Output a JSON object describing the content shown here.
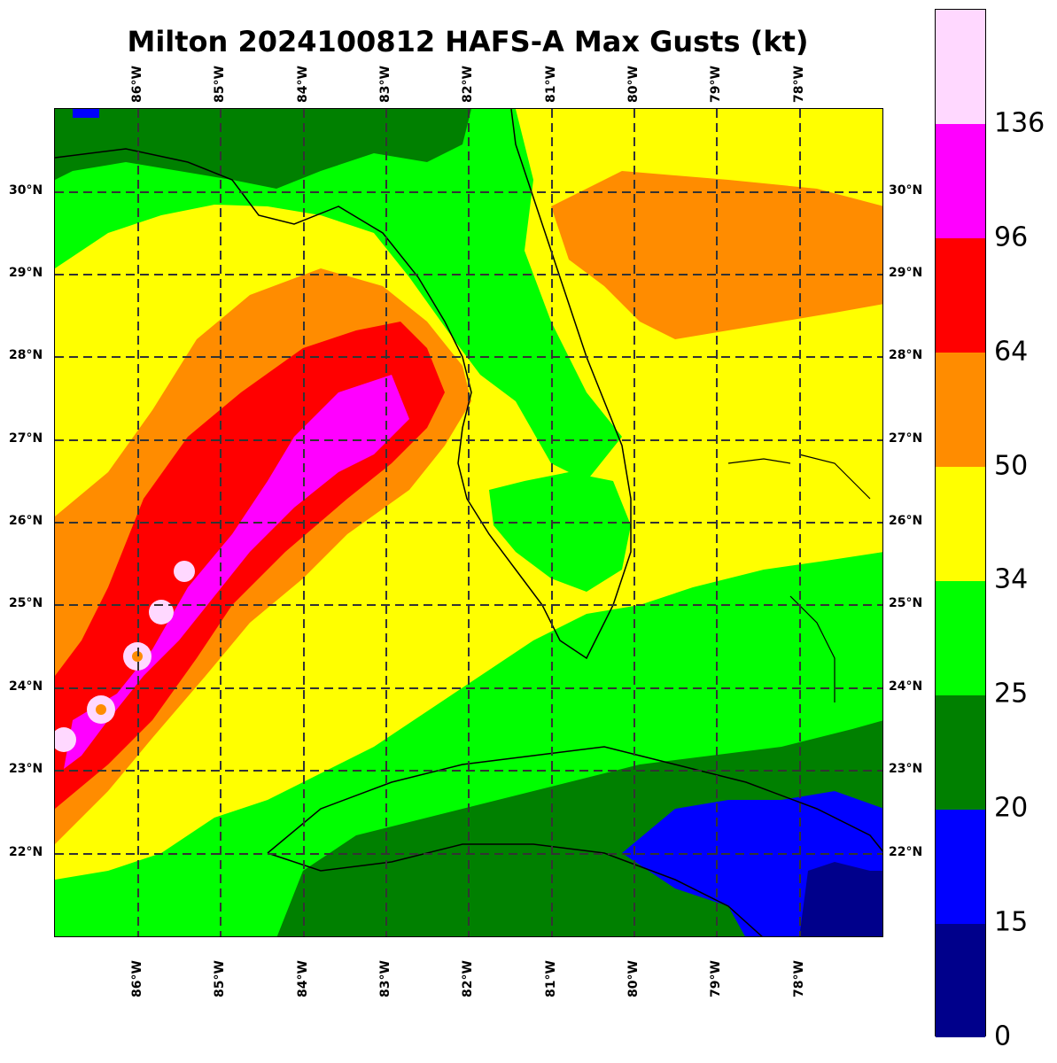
{
  "title": "Milton 2024100812 HAFS-A Max Gusts (kt)",
  "longitude_ticks": [
    "86°W",
    "85°W",
    "84°W",
    "83°W",
    "82°W",
    "81°W",
    "80°W",
    "79°W",
    "78°W"
  ],
  "latitude_ticks": [
    "30°N",
    "29°N",
    "28°N",
    "27°N",
    "26°N",
    "25°N",
    "24°N",
    "23°N",
    "22°N"
  ],
  "colorbar": {
    "labels": [
      "0",
      "15",
      "20",
      "25",
      "34",
      "50",
      "64",
      "96",
      "136"
    ],
    "colors": [
      "#00008b",
      "#0000ff",
      "#008000",
      "#00ff00",
      "#ffff00",
      "#ff8c00",
      "#ff0000",
      "#ff00ff",
      "#ffd8ff"
    ]
  },
  "map_colors": {
    "land_outline": "#000000",
    "county_lines": "#808080",
    "gridline": "#333333"
  }
}
